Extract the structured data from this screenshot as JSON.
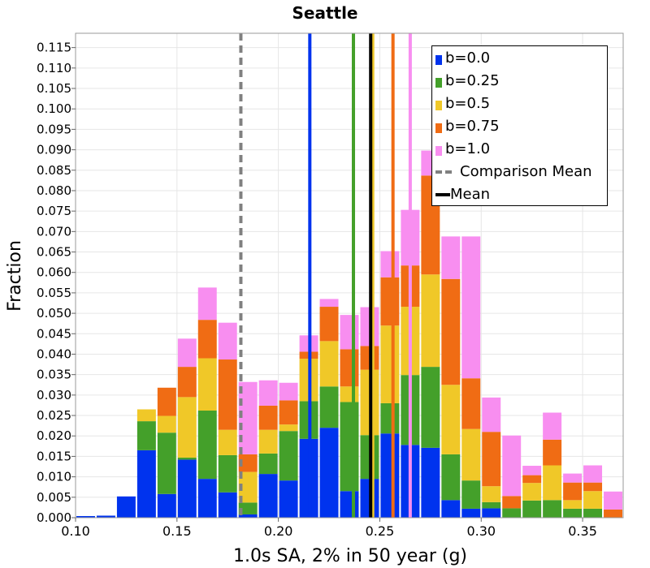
{
  "chart_data": {
    "type": "bar",
    "stacked": true,
    "title": "Seattle",
    "xlabel": "1.0s SA, 2% in 50 year (g)",
    "ylabel": "Fraction",
    "xlim": [
      0.1,
      0.37
    ],
    "ylim": [
      0.0,
      0.1185
    ],
    "bin_width": 0.01,
    "x": [
      0.105,
      0.115,
      0.125,
      0.135,
      0.145,
      0.155,
      0.165,
      0.175,
      0.185,
      0.195,
      0.205,
      0.215,
      0.225,
      0.235,
      0.245,
      0.255,
      0.265,
      0.275,
      0.285,
      0.295,
      0.305,
      0.315,
      0.325,
      0.335,
      0.345,
      0.355,
      0.365
    ],
    "xticks": [
      "0.10",
      "0.15",
      "0.20",
      "0.25",
      "0.30",
      "0.35"
    ],
    "xtick_values": [
      0.1,
      0.15,
      0.2,
      0.25,
      0.3,
      0.35
    ],
    "yticks": [
      "0.000",
      "0.005",
      "0.010",
      "0.015",
      "0.020",
      "0.025",
      "0.030",
      "0.035",
      "0.040",
      "0.045",
      "0.050",
      "0.055",
      "0.060",
      "0.065",
      "0.070",
      "0.075",
      "0.080",
      "0.085",
      "0.090",
      "0.095",
      "0.100",
      "0.105",
      "0.110",
      "0.115"
    ],
    "ytick_values": [
      0.0,
      0.005,
      0.01,
      0.015,
      0.02,
      0.025,
      0.03,
      0.035,
      0.04,
      0.045,
      0.05,
      0.055,
      0.06,
      0.065,
      0.07,
      0.075,
      0.08,
      0.085,
      0.09,
      0.095,
      0.1,
      0.105,
      0.11,
      0.115
    ],
    "grid": true,
    "legend_position": "top-right",
    "series": [
      {
        "name": "b=0.0",
        "color": "#0033ee",
        "values": [
          0.0004,
          0.0005,
          0.0052,
          0.0165,
          0.0058,
          0.0142,
          0.0095,
          0.0062,
          0.0008,
          0.0107,
          0.0091,
          0.0193,
          0.022,
          0.0065,
          0.0095,
          0.0206,
          0.0178,
          0.0171,
          0.0043,
          0.0022,
          0.0023,
          0.0,
          0.0,
          0.0,
          0.0,
          0.0,
          0.0
        ]
      },
      {
        "name": "b=0.25",
        "color": "#44a02a",
        "values": [
          0.0,
          0.0,
          0.0,
          0.0071,
          0.015,
          0.0005,
          0.0167,
          0.0091,
          0.0029,
          0.005,
          0.0121,
          0.0092,
          0.0101,
          0.0218,
          0.0107,
          0.0074,
          0.0171,
          0.0198,
          0.0112,
          0.0069,
          0.0015,
          0.0023,
          0.0042,
          0.0043,
          0.0022,
          0.0022,
          0.0
        ]
      },
      {
        "name": "b=0.5",
        "color": "#f0c828",
        "values": [
          0.0,
          0.0,
          0.0,
          0.0029,
          0.0041,
          0.0148,
          0.0128,
          0.0062,
          0.0075,
          0.0058,
          0.0016,
          0.0104,
          0.0111,
          0.0038,
          0.016,
          0.019,
          0.0167,
          0.0226,
          0.017,
          0.0126,
          0.0039,
          0.0,
          0.0043,
          0.0085,
          0.0021,
          0.0043,
          0.0
        ]
      },
      {
        "name": "b=0.75",
        "color": "#f06c14",
        "values": [
          0.0,
          0.0,
          0.0,
          0.0,
          0.0069,
          0.0074,
          0.0094,
          0.0172,
          0.0043,
          0.0059,
          0.0059,
          0.0017,
          0.0084,
          0.0091,
          0.0058,
          0.0118,
          0.0101,
          0.0242,
          0.0259,
          0.0124,
          0.0133,
          0.003,
          0.0019,
          0.0063,
          0.0043,
          0.0021,
          0.002
        ]
      },
      {
        "name": "b=1.0",
        "color": "#f88ef0",
        "values": [
          0.0,
          0.0,
          0.0,
          0.0,
          0.0,
          0.0069,
          0.0079,
          0.009,
          0.0177,
          0.0062,
          0.0043,
          0.004,
          0.0019,
          0.0084,
          0.0095,
          0.0064,
          0.0136,
          0.0061,
          0.0104,
          0.0347,
          0.0084,
          0.0148,
          0.0023,
          0.0066,
          0.0022,
          0.0042,
          0.0044
        ]
      }
    ],
    "vertical_lines": [
      {
        "name": "b=0.0",
        "x": 0.2155,
        "color": "#0033ee",
        "style": "solid"
      },
      {
        "name": "b=0.25",
        "x": 0.237,
        "color": "#44a02a",
        "style": "solid"
      },
      {
        "name": "b=0.5",
        "x": 0.2465,
        "color": "#f0c828",
        "style": "solid"
      },
      {
        "name": "b=0.75",
        "x": 0.2565,
        "color": "#f06c14",
        "style": "solid"
      },
      {
        "name": "b=1.0",
        "x": 0.265,
        "color": "#f88ef0",
        "style": "solid"
      },
      {
        "name": "Comparison Mean",
        "x": 0.1815,
        "color": "#808080",
        "style": "dashed"
      },
      {
        "name": "Mean",
        "x": 0.2455,
        "color": "#000000",
        "style": "solid"
      }
    ]
  },
  "legend": {
    "items": [
      {
        "label": "b=0.0",
        "color": "#0033ee",
        "kind": "bar"
      },
      {
        "label": "b=0.25",
        "color": "#44a02a",
        "kind": "bar"
      },
      {
        "label": "b=0.5",
        "color": "#f0c828",
        "kind": "bar"
      },
      {
        "label": "b=0.75",
        "color": "#f06c14",
        "kind": "bar"
      },
      {
        "label": "b=1.0",
        "color": "#f88ef0",
        "kind": "bar"
      },
      {
        "label": "Comparison Mean",
        "color": "#808080",
        "kind": "dashed"
      },
      {
        "label": "Mean",
        "color": "#000000",
        "kind": "solid"
      }
    ]
  }
}
